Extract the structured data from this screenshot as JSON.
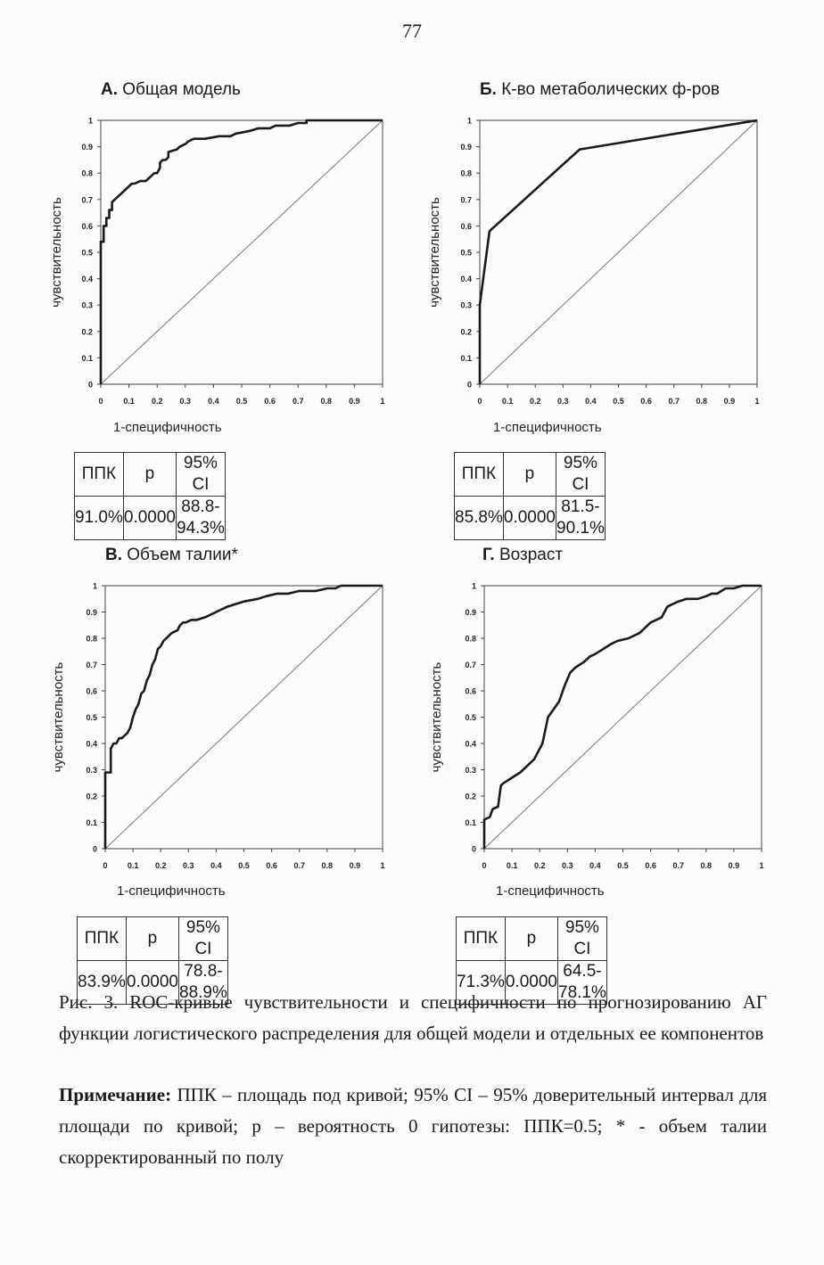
{
  "page_number": "77",
  "chart_data": [
    {
      "type": "line",
      "letter": "А.",
      "title": "Общая модель",
      "xlabel": "1-специфичность",
      "ylabel": "чувствительность",
      "xlim": [
        0,
        1
      ],
      "ylim": [
        0,
        1
      ],
      "x_ticks": [
        "0",
        "0.1",
        "0.2",
        "0.3",
        "0.4",
        "0.5",
        "0.6",
        "0.7",
        "0.8",
        "0.9",
        "1"
      ],
      "y_ticks": [
        "0",
        "0.1",
        "0.2",
        "0.3",
        "0.4",
        "0.5",
        "0.6",
        "0.7",
        "0.8",
        "0.9",
        "1"
      ],
      "diagonal": true,
      "series": [
        {
          "x": [
            0,
            0,
            0.01,
            0.01,
            0.02,
            0.02,
            0.03,
            0.03,
            0.04,
            0.04,
            0.05,
            0.06,
            0.07,
            0.08,
            0.09,
            0.1,
            0.11,
            0.12,
            0.14,
            0.16,
            0.17,
            0.18,
            0.19,
            0.2,
            0.21,
            0.21,
            0.22,
            0.23,
            0.24,
            0.24,
            0.27,
            0.28,
            0.3,
            0.31,
            0.33,
            0.37,
            0.42,
            0.46,
            0.48,
            0.53,
            0.56,
            0.6,
            0.62,
            0.67,
            0.7,
            0.73,
            0.73,
            0.8,
            0.88,
            0.95,
            1
          ],
          "y": [
            0,
            0.54,
            0.54,
            0.6,
            0.6,
            0.63,
            0.63,
            0.66,
            0.66,
            0.69,
            0.7,
            0.71,
            0.72,
            0.73,
            0.74,
            0.75,
            0.76,
            0.76,
            0.77,
            0.77,
            0.78,
            0.79,
            0.8,
            0.8,
            0.82,
            0.84,
            0.85,
            0.85,
            0.86,
            0.88,
            0.89,
            0.9,
            0.91,
            0.92,
            0.93,
            0.93,
            0.94,
            0.94,
            0.95,
            0.96,
            0.97,
            0.97,
            0.98,
            0.98,
            0.99,
            0.99,
            1,
            1,
            1,
            1,
            1
          ]
        }
      ],
      "stats": {
        "headers": [
          "ППК",
          "p",
          "95% CI"
        ],
        "values": [
          "91.0%",
          "0.0000",
          "88.8-94.3%"
        ]
      }
    },
    {
      "type": "line",
      "letter": "Б.",
      "title": "К-во метаболических ф-ров",
      "xlabel": "1-специфичность",
      "ylabel": "чувствительность",
      "xlim": [
        0,
        1
      ],
      "ylim": [
        0,
        1
      ],
      "x_ticks": [
        "0",
        "0.1",
        "0.2",
        "0.3",
        "0.4",
        "0.5",
        "0.6",
        "0.7",
        "0.8",
        "0.9",
        "1"
      ],
      "y_ticks": [
        "0",
        "0.1",
        "0.2",
        "0.3",
        "0.4",
        "0.5",
        "0.6",
        "0.7",
        "0.8",
        "0.9",
        "1"
      ],
      "diagonal": true,
      "series": [
        {
          "x": [
            0,
            0,
            0.035,
            0.36,
            1
          ],
          "y": [
            0,
            0.3,
            0.58,
            0.89,
            1
          ]
        }
      ],
      "stats": {
        "headers": [
          "ППК",
          "p",
          "95% CI"
        ],
        "values": [
          "85.8%",
          "0.0000",
          "81.5-90.1%"
        ]
      }
    },
    {
      "type": "line",
      "letter": "В.",
      "title": "Объем талии*",
      "xlabel": "1-специфичность",
      "ylabel": "чувствительность",
      "xlim": [
        0,
        1
      ],
      "ylim": [
        0,
        1
      ],
      "x_ticks": [
        "0",
        "0.1",
        "0.2",
        "0.3",
        "0.4",
        "0.5",
        "0.6",
        "0.7",
        "0.8",
        "0.9",
        "1"
      ],
      "y_ticks": [
        "0",
        "0.1",
        "0.2",
        "0.3",
        "0.4",
        "0.5",
        "0.6",
        "0.7",
        "0.8",
        "0.9",
        "1"
      ],
      "diagonal": true,
      "series": [
        {
          "x": [
            0,
            0,
            0.02,
            0.02,
            0.03,
            0.04,
            0.05,
            0.06,
            0.07,
            0.08,
            0.09,
            0.1,
            0.11,
            0.12,
            0.13,
            0.14,
            0.15,
            0.16,
            0.17,
            0.18,
            0.19,
            0.2,
            0.21,
            0.22,
            0.23,
            0.24,
            0.26,
            0.27,
            0.28,
            0.29,
            0.31,
            0.33,
            0.36,
            0.4,
            0.42,
            0.44,
            0.47,
            0.5,
            0.55,
            0.58,
            0.62,
            0.66,
            0.7,
            0.76,
            0.8,
            0.83,
            0.85,
            0.9,
            1
          ],
          "y": [
            0,
            0.29,
            0.29,
            0.38,
            0.4,
            0.4,
            0.42,
            0.42,
            0.43,
            0.44,
            0.46,
            0.5,
            0.53,
            0.55,
            0.59,
            0.6,
            0.64,
            0.66,
            0.7,
            0.72,
            0.76,
            0.77,
            0.79,
            0.8,
            0.81,
            0.82,
            0.83,
            0.85,
            0.86,
            0.86,
            0.87,
            0.87,
            0.88,
            0.9,
            0.91,
            0.92,
            0.93,
            0.94,
            0.95,
            0.96,
            0.97,
            0.97,
            0.98,
            0.98,
            0.99,
            0.99,
            1,
            1,
            1
          ]
        }
      ],
      "stats": {
        "headers": [
          "ППК",
          "p",
          "95% CI"
        ],
        "values": [
          "83.9%",
          "0.0000",
          "78.8-88.9%"
        ]
      }
    },
    {
      "type": "line",
      "letter": "Г.",
      "title": "Возраст",
      "xlabel": "1-специфичность",
      "ylabel": "чувствительность",
      "xlim": [
        0,
        1
      ],
      "ylim": [
        0,
        1
      ],
      "x_ticks": [
        "0",
        "0.1",
        "0.2",
        "0.3",
        "0.4",
        "0.5",
        "0.6",
        "0.7",
        "0.8",
        "0.9",
        "1"
      ],
      "y_ticks": [
        "0",
        "0.1",
        "0.2",
        "0.3",
        "0.4",
        "0.5",
        "0.6",
        "0.7",
        "0.8",
        "0.9",
        "1"
      ],
      "diagonal": true,
      "series": [
        {
          "x": [
            0,
            0,
            0.02,
            0.03,
            0.05,
            0.06,
            0.07,
            0.1,
            0.13,
            0.16,
            0.18,
            0.2,
            0.21,
            0.22,
            0.23,
            0.25,
            0.27,
            0.29,
            0.31,
            0.33,
            0.36,
            0.38,
            0.4,
            0.43,
            0.46,
            0.48,
            0.52,
            0.56,
            0.58,
            0.6,
            0.62,
            0.64,
            0.66,
            0.68,
            0.7,
            0.73,
            0.77,
            0.8,
            0.82,
            0.84,
            0.87,
            0.9,
            0.93,
            0.95,
            1
          ],
          "y": [
            0,
            0.11,
            0.12,
            0.15,
            0.16,
            0.24,
            0.25,
            0.27,
            0.29,
            0.32,
            0.34,
            0.38,
            0.4,
            0.45,
            0.5,
            0.53,
            0.56,
            0.62,
            0.67,
            0.69,
            0.71,
            0.73,
            0.74,
            0.76,
            0.78,
            0.79,
            0.8,
            0.82,
            0.84,
            0.86,
            0.87,
            0.88,
            0.92,
            0.93,
            0.94,
            0.95,
            0.95,
            0.96,
            0.97,
            0.97,
            0.99,
            0.99,
            1,
            1,
            1
          ]
        }
      ],
      "stats": {
        "headers": [
          "ППК",
          "p",
          "95% CI"
        ],
        "values": [
          "71.3%",
          "0.0000",
          "64.5-78.1%"
        ]
      }
    }
  ],
  "caption": "Рис. 3. ROC-кривые чувствительности и специфичности по прогнозированию АГ функции логистического распределения для общей модели и отдельных ее компонентов",
  "note_label": "Примечание:",
  "note_text": " ППК – площадь под кривой; 95% CI – 95% доверительный интервал для площади по кривой; p – вероятность 0 гипотезы: ППК=0.5; * - объем талии скорректированный по полу"
}
